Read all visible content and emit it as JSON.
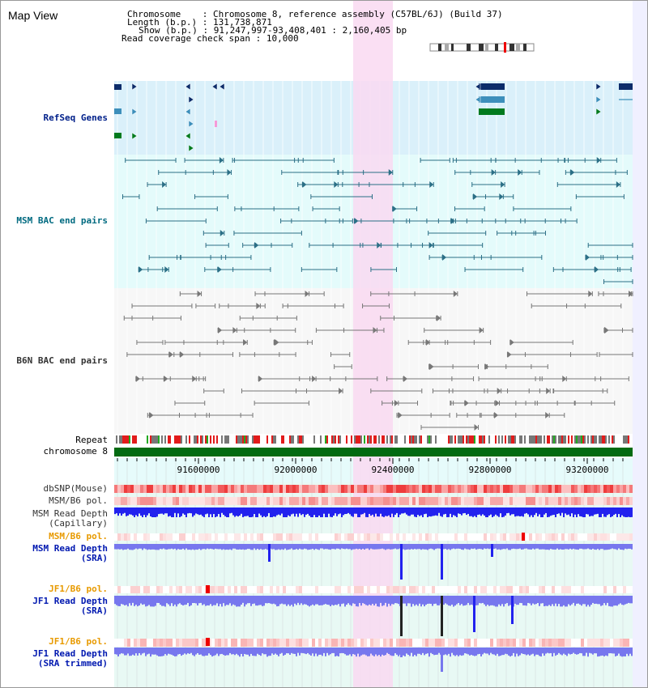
{
  "title": "Map View",
  "info": {
    "chromosome_key": "Chromosome",
    "chromosome_val": "Chromosome 8, reference assembly (C57BL/6J) (Build 37)",
    "length_key": "Length (b.p.)",
    "length_val": "131,738,871",
    "show_key": "Show (b.p.)",
    "show_val": "91,247,997-93,408,401 : 2,160,405 bp",
    "span_key": "Read coverage check span",
    "span_val": "10,000"
  },
  "tracks": {
    "refseq": "RefSeq Genes",
    "msm_bac": "MSM BAC end pairs",
    "b6n_bac": "B6N BAC end pairs",
    "repeat": "Repeat",
    "chromosome": "chromosome 8",
    "dbsnp": "dbSNP(Mouse)",
    "msmb6_pol_1": "MSM/B6 pol.",
    "msm_read_depth_cap_1": "MSM Read Depth",
    "msm_read_depth_cap_2": "(Capillary)",
    "msmb6_pol_2": "MSM/B6 pol.",
    "msm_read_depth_sra_1": "MSM Read Depth",
    "msm_read_depth_sra_2": "(SRA)",
    "jf1b6_pol_1": "JF1/B6 pol.",
    "jf1_read_depth_sra_1": "JF1 Read Depth",
    "jf1_read_depth_sra_2": "(SRA)",
    "jf1b6_pol_2": "JF1/B6 pol.",
    "jf1_read_depth_trim_1": "JF1 Read Depth",
    "jf1_read_depth_trim_2": "(SRA trimmed)"
  },
  "axis": {
    "ticks": [
      "91600000",
      "92000000",
      "92400000",
      "92800000",
      "93200000"
    ]
  },
  "colors": {
    "highlight": "#f9d9f1",
    "refseq_bg": "#daf0fa",
    "msm_bg": "#e4fbfb",
    "b6n_bg": "#f7f7f7",
    "cover_bg": "#e8f9f4",
    "gene_navy": "#0c2c6a",
    "gene_teal": "#3d8fbb",
    "gene_green": "#007a1e",
    "msm_pair": "#2b6f86",
    "b6n_pair": "#777777",
    "chrom_green": "#036b12",
    "depth_blue": "#2222ee",
    "sra_blue": "#7777ee"
  }
}
